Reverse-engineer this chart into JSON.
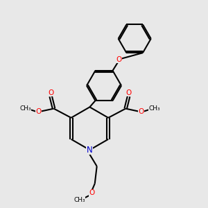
{
  "bg_color": "#e8e8e8",
  "bond_color": "#000000",
  "oxygen_color": "#ff0000",
  "nitrogen_color": "#0000cd",
  "line_width": 1.5,
  "fig_size": [
    3.0,
    3.0
  ],
  "dpi": 100,
  "xlim": [
    0,
    10
  ],
  "ylim": [
    0,
    10
  ]
}
